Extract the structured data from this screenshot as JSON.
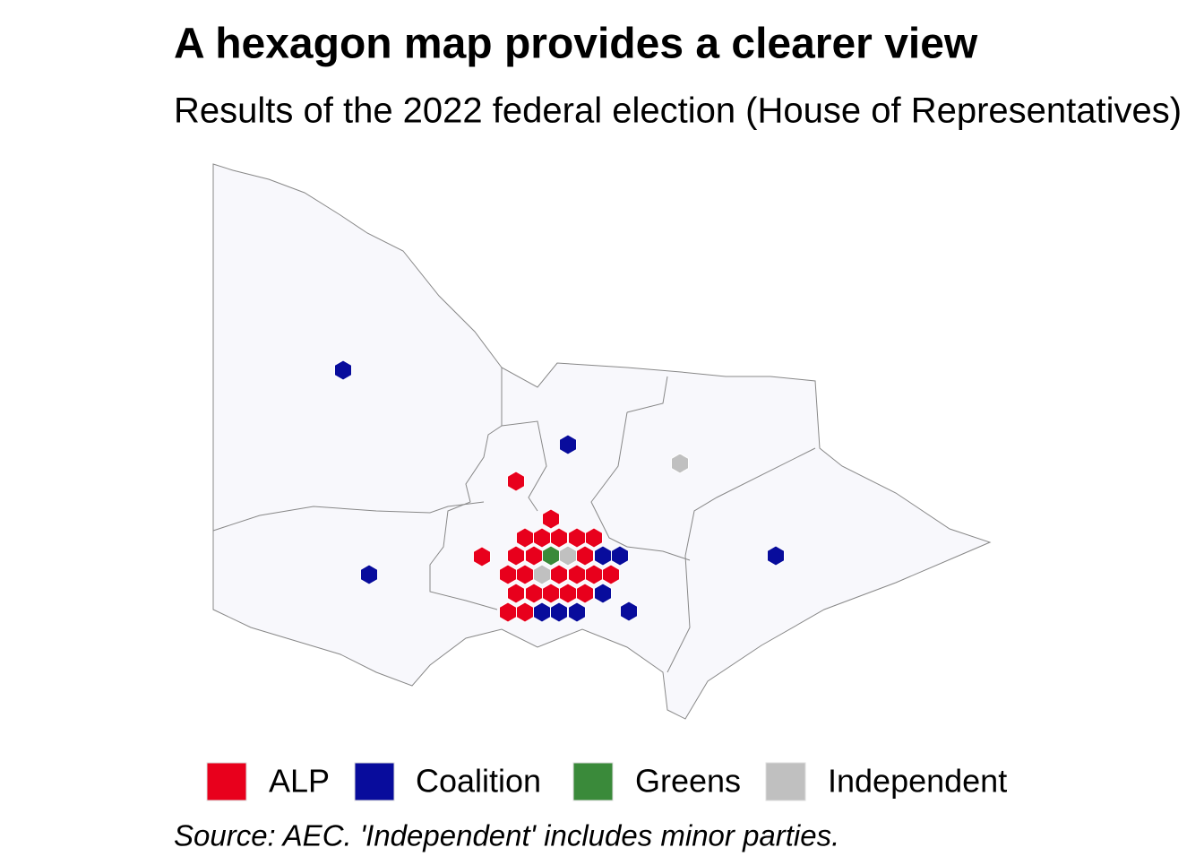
{
  "title": "A hexagon map provides a clearer view",
  "subtitle": "Results of the 2022 federal election (House of Representatives)",
  "legend": [
    {
      "name": "ALP",
      "color": "#e8001c"
    },
    {
      "name": "Coalition",
      "color": "#080c9c"
    },
    {
      "name": "Greens",
      "color": "#3a8a3a"
    },
    {
      "name": "Independent",
      "color": "#c0c0c0"
    }
  ],
  "source": "Source: AEC. 'Independent' includes minor parties."
}
